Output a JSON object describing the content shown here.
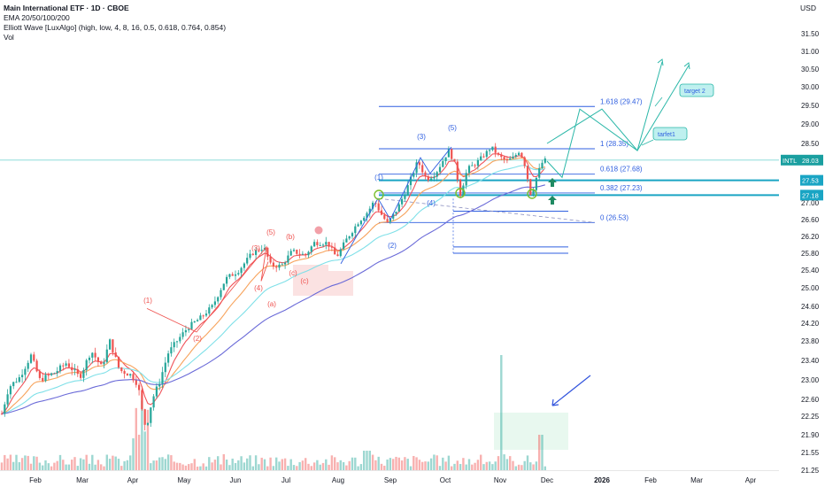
{
  "header": {
    "title": "Main International ETF · 1D · CBOE",
    "indicator_1": "EMA 20/50/100/200",
    "indicator_2": "Elliott Wave [LuxAlgo] (high, low, 4, 8, 16, 0.5, 0.618, 0.764, 0.854)",
    "indicator_3": "Vol",
    "currency": "USD"
  },
  "colors": {
    "up": "#26a69a",
    "down": "#ef5350",
    "ema20": "#f0535a",
    "ema50": "#f7a35c",
    "ema100": "#7fe0e8",
    "ema200": "#6a6ad8",
    "fib": "#2f5fe0",
    "target": "#2bb7a8"
  },
  "chart_data": {
    "type": "candlestick",
    "ticker": "INTL",
    "y_ticks": [
      21.25,
      21.55,
      21.9,
      22.25,
      22.6,
      23.0,
      23.4,
      23.8,
      24.2,
      24.6,
      25.0,
      25.4,
      25.8,
      26.2,
      26.6,
      27.0,
      27.5,
      28.0,
      28.5,
      29.0,
      29.5,
      30.0,
      30.5,
      31.0,
      31.5
    ],
    "x_ticks": [
      "Feb",
      "Mar",
      "Apr",
      "May",
      "Jun",
      "Jul",
      "Aug",
      "Sep",
      "Oct",
      "Nov",
      "Dec",
      "2026",
      "Feb",
      "Mar",
      "Apr"
    ],
    "price_labels": [
      {
        "text": "INTL",
        "value": "28.03",
        "price": 28.03
      },
      {
        "value": "27.53",
        "price": 27.53
      },
      {
        "value": "27.18",
        "price": 27.18
      }
    ],
    "fib_levels": [
      {
        "label": "1.618 (29.47)",
        "price": 29.47
      },
      {
        "label": "1 (28.35)",
        "price": 28.35
      },
      {
        "label": "0.618 (27.68)",
        "price": 27.68
      },
      {
        "label": "0.382 (27.23)",
        "price": 27.23
      },
      {
        "label": "0 (26.53)",
        "price": 26.53
      }
    ],
    "wave_labels": [
      {
        "text": "(1)",
        "color": "red"
      },
      {
        "text": "(2)",
        "color": "red"
      },
      {
        "text": "(3)",
        "color": "red"
      },
      {
        "text": "(4)",
        "color": "red"
      },
      {
        "text": "(5)",
        "color": "red"
      },
      {
        "text": "(a)",
        "color": "red"
      },
      {
        "text": "(b)",
        "color": "red"
      },
      {
        "text": "(c)",
        "color": "red"
      },
      {
        "text": "(c)",
        "color": "red"
      },
      {
        "text": "(1)",
        "color": "blue"
      },
      {
        "text": "(2)",
        "color": "blue"
      },
      {
        "text": "(3)",
        "color": "blue"
      },
      {
        "text": "(4)",
        "color": "blue"
      },
      {
        "text": "(5)",
        "color": "blue"
      }
    ],
    "targets": [
      "target 2",
      "tarfet1"
    ],
    "series": [
      {
        "name": "EMA 20"
      },
      {
        "name": "EMA 50"
      },
      {
        "name": "EMA 100"
      },
      {
        "name": "EMA 200"
      }
    ]
  }
}
